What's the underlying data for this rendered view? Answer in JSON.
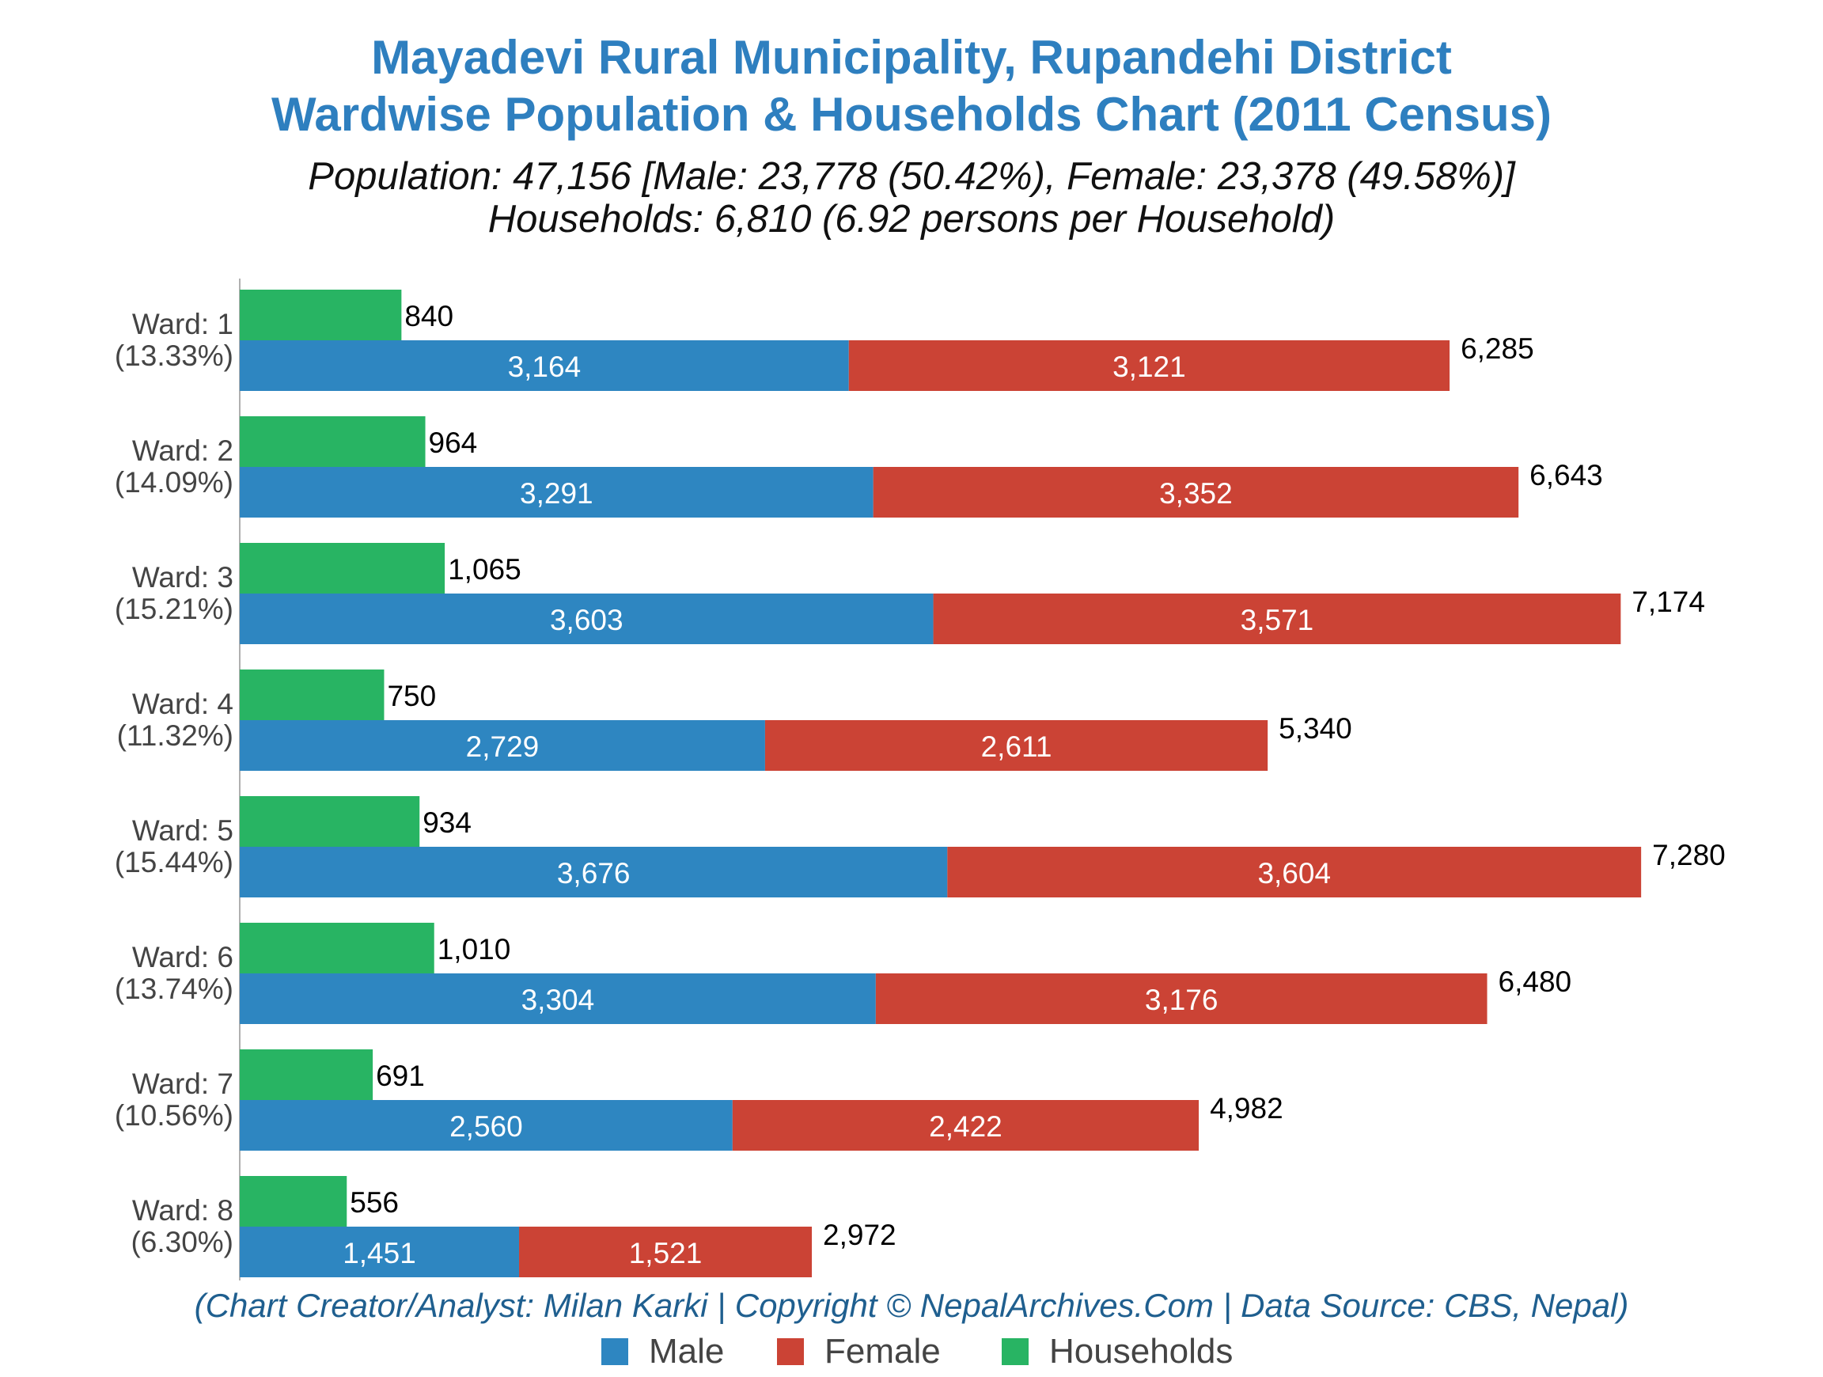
{
  "title_line1": "Mayadevi Rural Municipality, Rupandehi District",
  "title_line2": "Wardwise Population & Households Chart (2011 Census)",
  "subtitle_line1": "Population: 47,156 [Male: 23,778 (50.42%), Female: 23,378 (49.58%)]",
  "subtitle_line2": "Households: 6,810 (6.92 persons per Household)",
  "credit": "(Chart Creator/Analyst: Milan Karki | Copyright © NepalArchives.Com | Data Source: CBS, Nepal)",
  "colors": {
    "male": "#2e86c1",
    "female": "#cb4335",
    "households": "#28b463"
  },
  "legend": {
    "male": "Male",
    "female": "Female",
    "households": "Households"
  },
  "chart_data": {
    "type": "bar",
    "orientation": "horizontal",
    "stacked_series": [
      "Male",
      "Female"
    ],
    "categories": [
      "Ward: 1",
      "Ward: 2",
      "Ward: 3",
      "Ward: 4",
      "Ward: 5",
      "Ward: 6",
      "Ward: 7",
      "Ward: 8"
    ],
    "category_percentages": [
      "(13.33%)",
      "(14.09%)",
      "(15.21%)",
      "(11.32%)",
      "(15.44%)",
      "(13.74%)",
      "(10.56%)",
      "(6.30%)"
    ],
    "series": [
      {
        "name": "Male",
        "values": [
          3164,
          3291,
          3603,
          2729,
          3676,
          3304,
          2560,
          1451
        ]
      },
      {
        "name": "Female",
        "values": [
          3121,
          3352,
          3571,
          2611,
          3604,
          3176,
          2422,
          1521
        ]
      },
      {
        "name": "Households",
        "values": [
          840,
          964,
          1065,
          750,
          934,
          1010,
          691,
          556
        ]
      }
    ],
    "totals": [
      6285,
      6643,
      7174,
      5340,
      7280,
      6480,
      4982,
      2972
    ],
    "xlim": [
      0,
      7600
    ],
    "grid": false,
    "legend_position": "bottom"
  }
}
